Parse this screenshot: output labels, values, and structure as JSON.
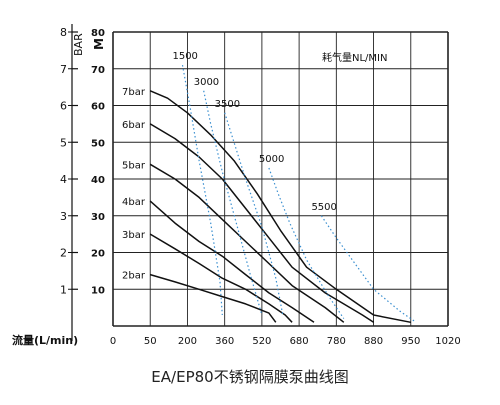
{
  "chart_data": {
    "type": "line",
    "caption": "EA/EP80不锈钢隔膜泵曲线图",
    "xlabel": "流量(L/min)",
    "x_ticks": [
      "0",
      "50",
      "200",
      "360",
      "520",
      "680",
      "780",
      "880",
      "950",
      "1020"
    ],
    "y_left_unit": "BAR",
    "y_left_ticks": [
      "1",
      "2",
      "3",
      "4",
      "5",
      "6",
      "7",
      "8"
    ],
    "y_right_unit": "M",
    "y_right_ticks": [
      "10",
      "20",
      "30",
      "40",
      "50",
      "60",
      "70",
      "80"
    ],
    "ylim_m": [
      0,
      80
    ],
    "air_consumption_label": "耗气量NL/MIN",
    "series": [
      {
        "name": "7bar",
        "values": [
          [
            50,
            64
          ],
          [
            120,
            62
          ],
          [
            200,
            58
          ],
          [
            300,
            52
          ],
          [
            400,
            45
          ],
          [
            500,
            36
          ],
          [
            600,
            26
          ],
          [
            700,
            16
          ],
          [
            780,
            10
          ],
          [
            880,
            3
          ],
          [
            950,
            1
          ]
        ]
      },
      {
        "name": "6bar",
        "values": [
          [
            50,
            55
          ],
          [
            150,
            51
          ],
          [
            250,
            46
          ],
          [
            350,
            40
          ],
          [
            450,
            32
          ],
          [
            550,
            24
          ],
          [
            650,
            16
          ],
          [
            750,
            9
          ],
          [
            850,
            3
          ],
          [
            880,
            1
          ]
        ]
      },
      {
        "name": "5bar",
        "values": [
          [
            50,
            44
          ],
          [
            150,
            40
          ],
          [
            250,
            35
          ],
          [
            350,
            29
          ],
          [
            450,
            23
          ],
          [
            550,
            17
          ],
          [
            650,
            11
          ],
          [
            750,
            5
          ],
          [
            800,
            1
          ]
        ]
      },
      {
        "name": "4bar",
        "values": [
          [
            50,
            34
          ],
          [
            150,
            28
          ],
          [
            250,
            23
          ],
          [
            350,
            19
          ],
          [
            450,
            14
          ],
          [
            550,
            9
          ],
          [
            650,
            5
          ],
          [
            720,
            1
          ]
        ]
      },
      {
        "name": "3bar",
        "values": [
          [
            50,
            25
          ],
          [
            150,
            21
          ],
          [
            250,
            17
          ],
          [
            350,
            13
          ],
          [
            450,
            10
          ],
          [
            550,
            6
          ],
          [
            620,
            3
          ],
          [
            650,
            1
          ]
        ]
      },
      {
        "name": "2bar",
        "values": [
          [
            50,
            14
          ],
          [
            150,
            12
          ],
          [
            250,
            10
          ],
          [
            350,
            8
          ],
          [
            450,
            6
          ],
          [
            550,
            3.5
          ],
          [
            580,
            1
          ]
        ]
      }
    ],
    "air_curves": [
      {
        "label": "1500",
        "values": [
          [
            180,
            71
          ],
          [
            210,
            60
          ],
          [
            250,
            45
          ],
          [
            300,
            28
          ],
          [
            340,
            12
          ],
          [
            350,
            3
          ]
        ]
      },
      {
        "label": "3000",
        "values": [
          [
            270,
            64
          ],
          [
            300,
            55
          ],
          [
            350,
            42
          ],
          [
            410,
            28
          ],
          [
            470,
            14
          ],
          [
            520,
            3
          ]
        ]
      },
      {
        "label": "3500",
        "values": [
          [
            360,
            58
          ],
          [
            400,
            50
          ],
          [
            450,
            40
          ],
          [
            520,
            27
          ],
          [
            580,
            13
          ],
          [
            610,
            3
          ]
        ]
      },
      {
        "label": "5000",
        "values": [
          [
            550,
            43
          ],
          [
            590,
            36
          ],
          [
            640,
            28
          ],
          [
            700,
            18
          ],
          [
            760,
            8
          ],
          [
            800,
            2
          ]
        ]
      },
      {
        "label": "5500",
        "values": [
          [
            740,
            30
          ],
          [
            780,
            24
          ],
          [
            830,
            17
          ],
          [
            880,
            10
          ],
          [
            930,
            4
          ],
          [
            960,
            1
          ]
        ]
      }
    ]
  }
}
